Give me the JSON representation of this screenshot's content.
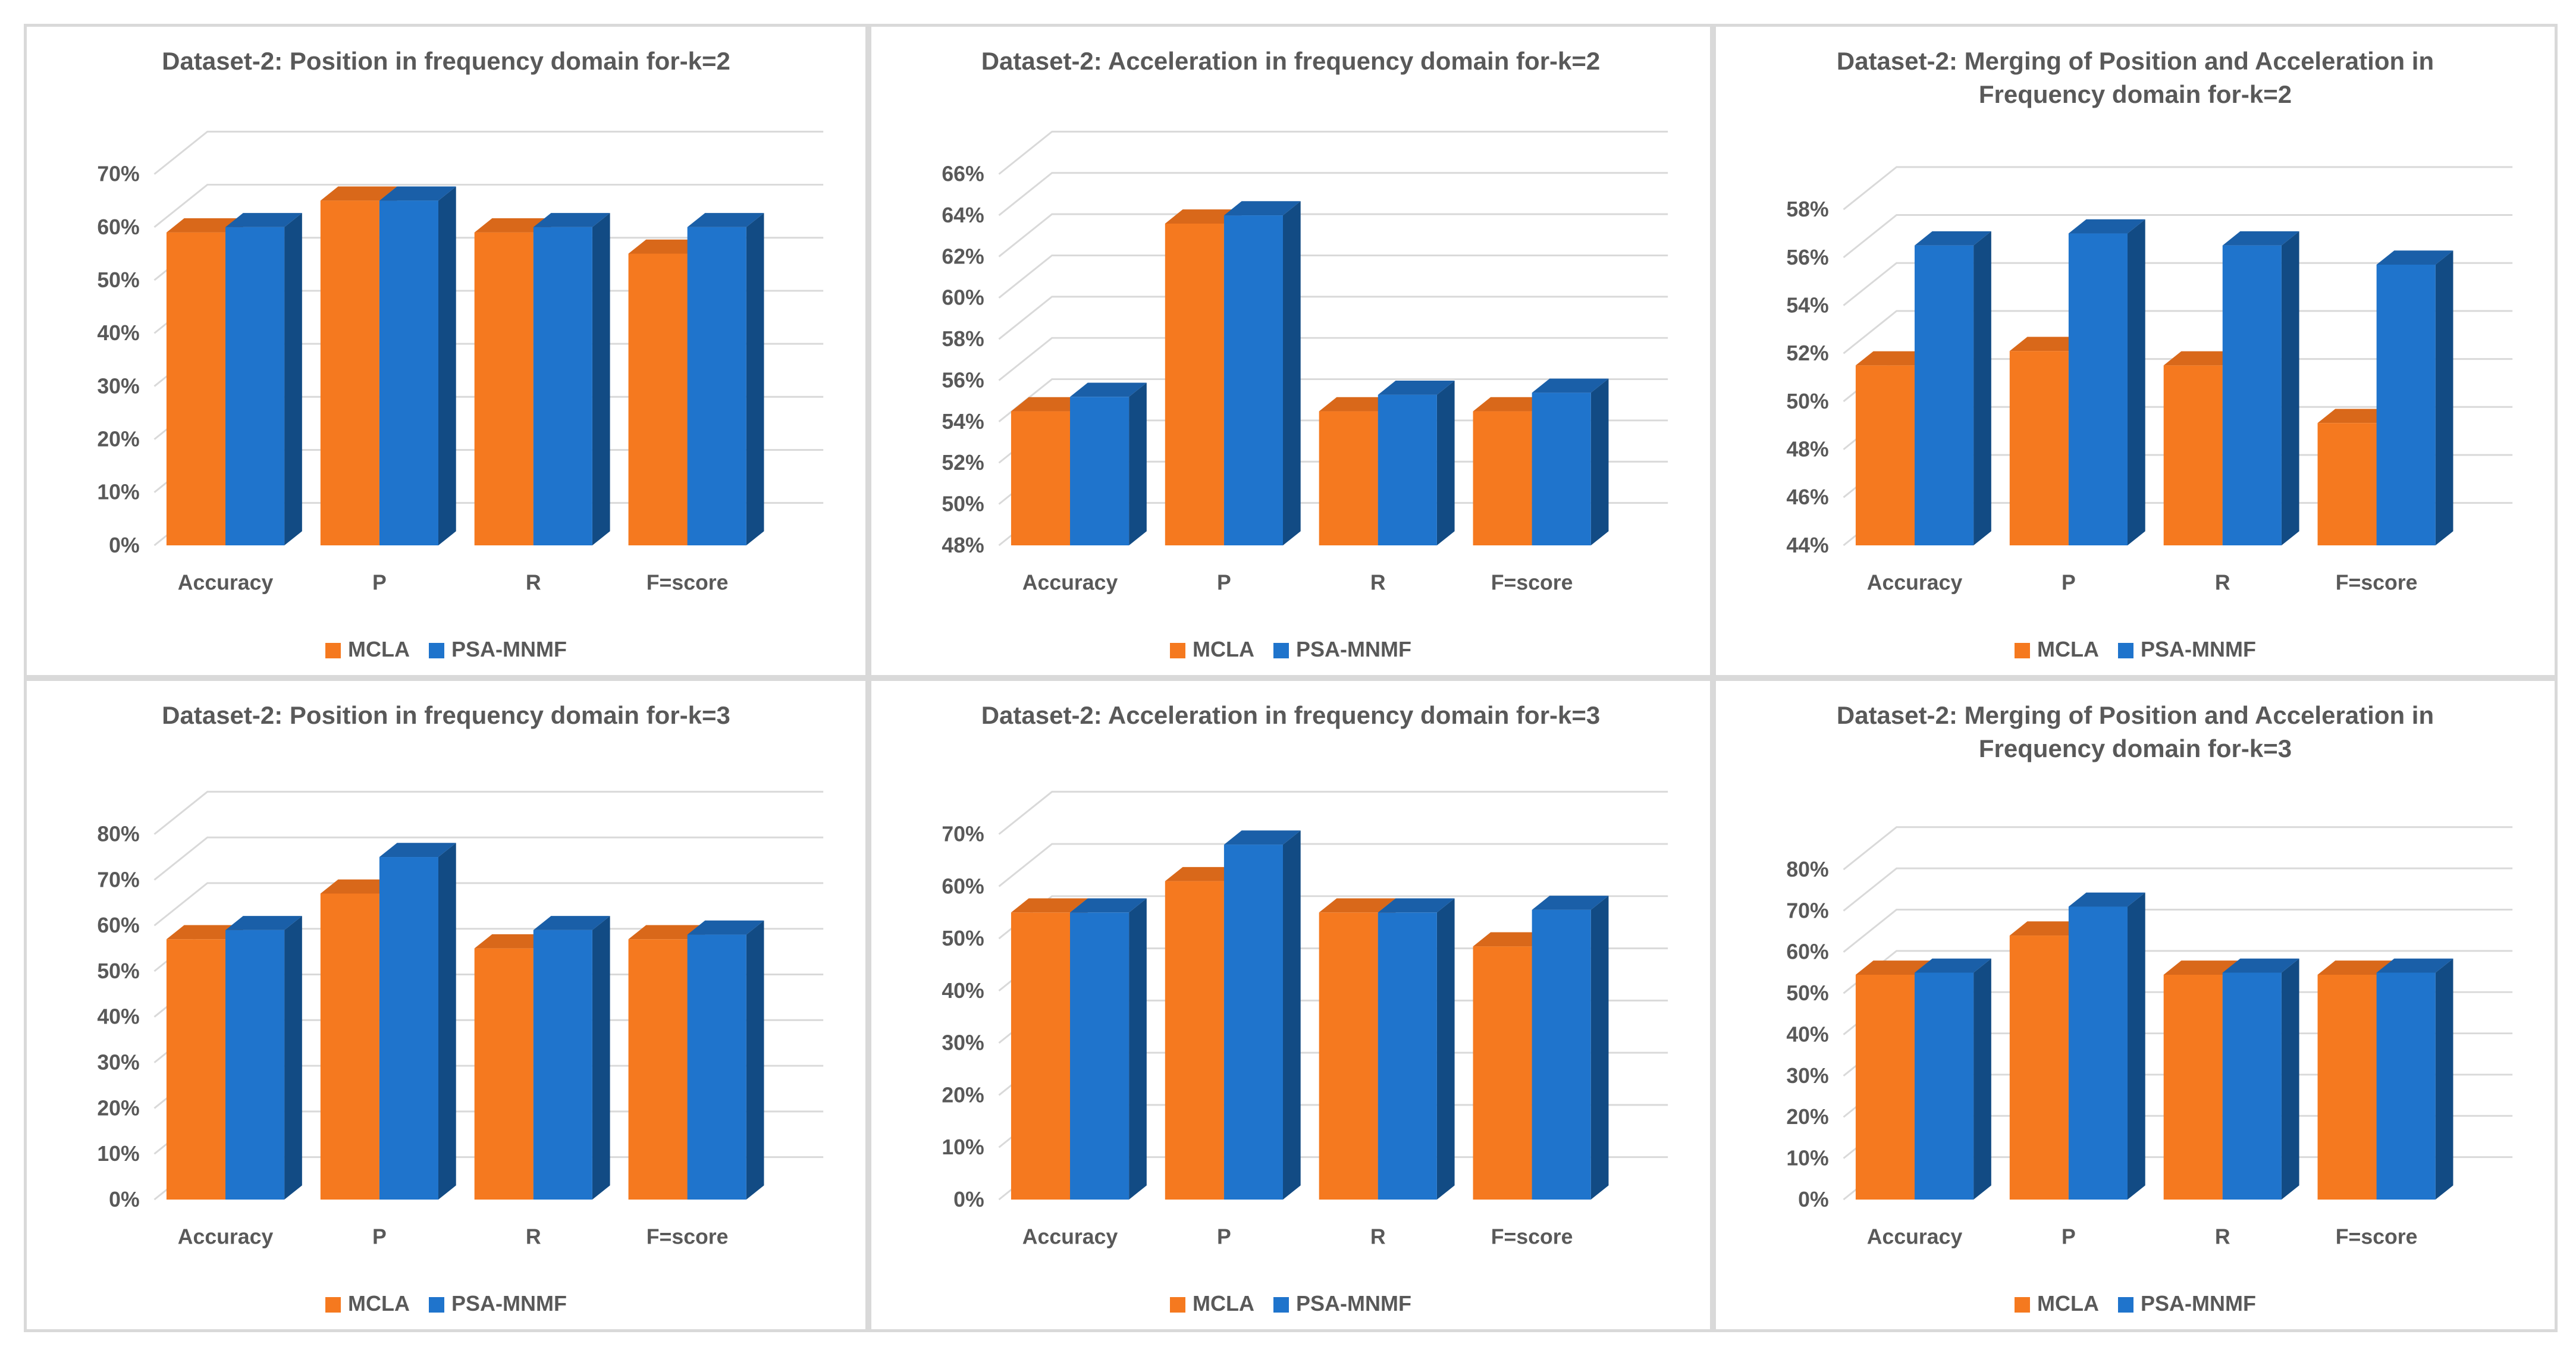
{
  "colors": {
    "mcla_front": "#f5791f",
    "mcla_side": "#bf5208",
    "mcla_top": "#d9681a",
    "psa_front": "#1f74cc",
    "psa_side": "#124b84",
    "psa_top": "#1a5fa8",
    "grid": "#d9d9d9",
    "text": "#595959"
  },
  "chart_data": [
    {
      "type": "bar",
      "title": [
        "Dataset-2: Position in frequency domain for-k=2"
      ],
      "categories": [
        "Accuracy",
        "P",
        "R",
        "F=score"
      ],
      "series": [
        {
          "name": "MCLA",
          "values": [
            59,
            65,
            59,
            55
          ]
        },
        {
          "name": "PSA-MNMF",
          "values": [
            60,
            65,
            60,
            60
          ]
        }
      ],
      "ylim": [
        0,
        70
      ],
      "ystep": 10,
      "ytick_suffix": "%",
      "grid": true,
      "legend": "bottom"
    },
    {
      "type": "bar",
      "title": [
        "Dataset-2: Acceleration in frequency domain for-k=2"
      ],
      "categories": [
        "Accuracy",
        "P",
        "R",
        "F=score"
      ],
      "series": [
        {
          "name": "MCLA",
          "values": [
            54.5,
            63.6,
            54.5,
            54.5
          ]
        },
        {
          "name": "PSA-MNMF",
          "values": [
            55.2,
            64,
            55.3,
            55.4
          ]
        }
      ],
      "ylim": [
        48,
        66
      ],
      "ystep": 2,
      "ytick_suffix": "%",
      "grid": true,
      "legend": "bottom"
    },
    {
      "type": "bar",
      "title": [
        "Dataset-2: Merging of Position and Acceleration in",
        "Frequency domain for-k=2"
      ],
      "categories": [
        "Accuracy",
        "P",
        "R",
        "F=score"
      ],
      "series": [
        {
          "name": "MCLA",
          "values": [
            51.5,
            52.1,
            51.5,
            49.1
          ]
        },
        {
          "name": "PSA-MNMF",
          "values": [
            56.5,
            57,
            56.5,
            55.7
          ]
        }
      ],
      "ylim": [
        44,
        58
      ],
      "ystep": 2,
      "ytick_suffix": "%",
      "grid": true,
      "legend": "bottom"
    },
    {
      "type": "bar",
      "title": [
        "Dataset-2: Position in frequency domain for-k=3"
      ],
      "categories": [
        "Accuracy",
        "P",
        "R",
        "F=score"
      ],
      "series": [
        {
          "name": "MCLA",
          "values": [
            57,
            67,
            55,
            57
          ]
        },
        {
          "name": "PSA-MNMF",
          "values": [
            59,
            75,
            59,
            58
          ]
        }
      ],
      "ylim": [
        0,
        80
      ],
      "ystep": 10,
      "ytick_suffix": "%",
      "grid": true,
      "legend": "bottom"
    },
    {
      "type": "bar",
      "title": [
        "Dataset-2: Acceleration in frequency domain for-k=3"
      ],
      "categories": [
        "Accuracy",
        "P",
        "R",
        "F=score"
      ],
      "series": [
        {
          "name": "MCLA",
          "values": [
            55,
            61,
            55,
            48.5
          ]
        },
        {
          "name": "PSA-MNMF",
          "values": [
            55,
            68,
            55,
            55.5
          ]
        }
      ],
      "ylim": [
        0,
        70
      ],
      "ystep": 10,
      "ytick_suffix": "%",
      "grid": true,
      "legend": "bottom"
    },
    {
      "type": "bar",
      "title": [
        "Dataset-2: Merging of Position and Acceleration in",
        "Frequency domain for-k=3"
      ],
      "categories": [
        "Accuracy",
        "P",
        "R",
        "F=score"
      ],
      "series": [
        {
          "name": "MCLA",
          "values": [
            54.5,
            64,
            54.5,
            54.5
          ]
        },
        {
          "name": "PSA-MNMF",
          "values": [
            55,
            71,
            55,
            55
          ]
        }
      ],
      "ylim": [
        0,
        80
      ],
      "ystep": 10,
      "ytick_suffix": "%",
      "grid": true,
      "legend": "bottom"
    }
  ]
}
